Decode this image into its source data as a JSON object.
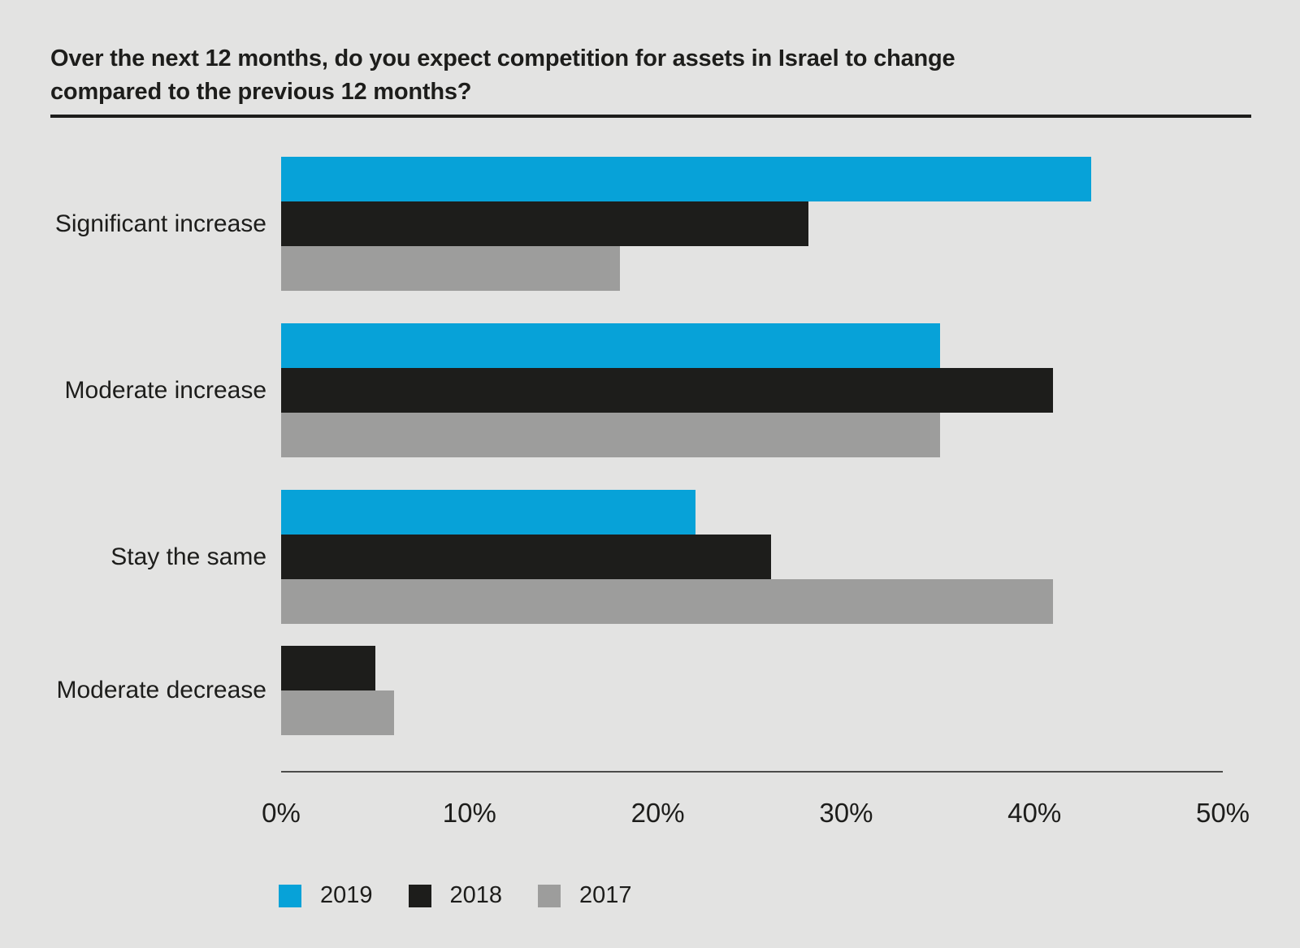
{
  "header": {
    "title_line1": "Over the next 12 months, do you expect competition for assets in Israel to change",
    "title_line2": "compared to the previous 12 months?"
  },
  "chart_data": {
    "type": "bar",
    "orientation": "horizontal",
    "title": "Over the next 12 months, do you expect competition for assets in Israel to change compared to the previous 12 months?",
    "categories": [
      "Significant increase",
      "Moderate increase",
      "Stay the same",
      "Moderate decrease"
    ],
    "series": [
      {
        "name": "2019",
        "color": "#07a2d8",
        "values": [
          43,
          35,
          22,
          0
        ]
      },
      {
        "name": "2018",
        "color": "#1d1d1b",
        "values": [
          28,
          41,
          26,
          5
        ]
      },
      {
        "name": "2017",
        "color": "#9d9d9c",
        "values": [
          18,
          35,
          41,
          6
        ]
      }
    ],
    "x_axis": {
      "min": 0,
      "max": 50,
      "tick_step": 10,
      "tick_labels": [
        "0%",
        "10%",
        "20%",
        "30%",
        "40%",
        "50%"
      ],
      "unit": "percent"
    },
    "grid": false,
    "data_labels": false,
    "legend_position": "bottom",
    "zero_value_bars_hidden": true,
    "colors": {
      "background": "#e3e3e2",
      "text": "#1d1d1b",
      "axis_line": "#4c4c4a",
      "title_rule": "#1d1d1b"
    }
  }
}
